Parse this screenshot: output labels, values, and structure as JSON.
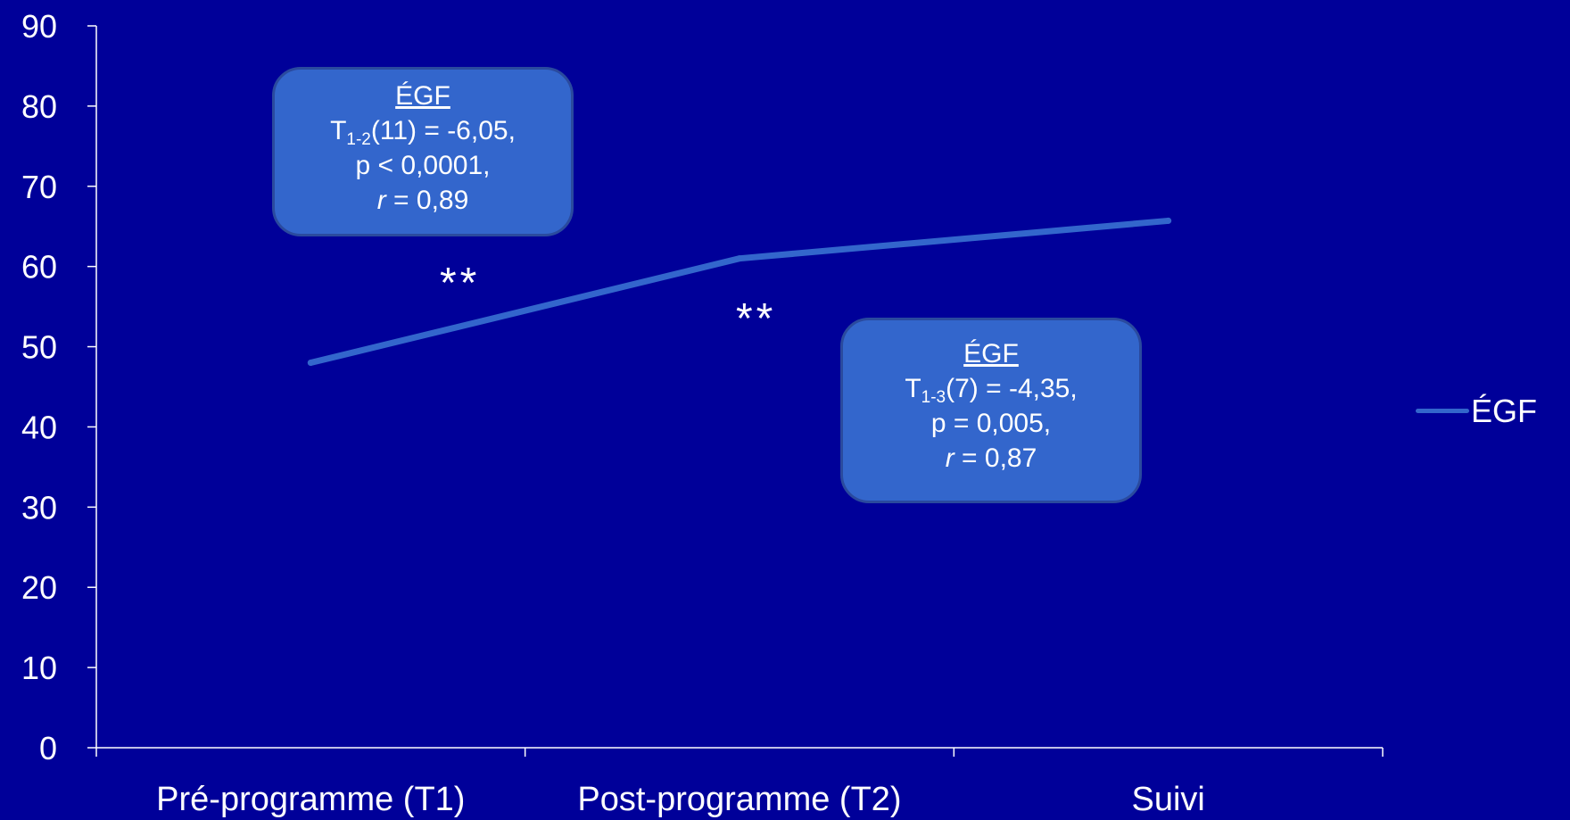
{
  "colors": {
    "background": "#000099",
    "series": "#3366cc",
    "text": "#ffffff"
  },
  "chart_data": {
    "type": "line",
    "categories": [
      "Pré-programme (T1)",
      "Post-programme (T2)",
      "Suivi"
    ],
    "series": [
      {
        "name": "ÉGF",
        "values": [
          48,
          61,
          65.7
        ]
      }
    ],
    "ylim": [
      0,
      90
    ],
    "yticks": [
      0,
      10,
      20,
      30,
      40,
      50,
      60,
      70,
      80,
      90
    ],
    "grid": false,
    "legend": "right"
  },
  "annotations": {
    "stars1": "**",
    "stars2": "**",
    "callout1": {
      "title": "ÉGF",
      "stat_prefix": "T",
      "stat_sub": "1-2",
      "stat_rest": "(11) = -6,05,",
      "p": "p < 0,0001,",
      "r_symbol": "r",
      "r_rest": " = 0,89"
    },
    "callout2": {
      "title": "ÉGF",
      "stat_prefix": "T",
      "stat_sub": "1-3",
      "stat_rest": "(7) = -4,35,",
      "p": "p = 0,005,",
      "r_symbol": "r",
      "r_rest": " = 0,87"
    }
  },
  "legend": {
    "label": "ÉGF"
  }
}
